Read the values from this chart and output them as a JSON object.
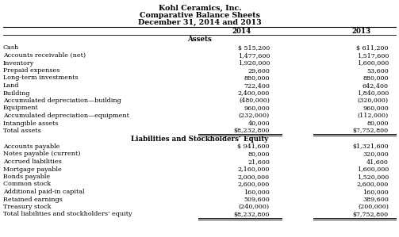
{
  "title_line1": "Kohl Ceramics, Inc.",
  "title_line2": "Comparative Balance Sheets",
  "title_line3": "December 31, 2014 and 2013",
  "assets_header": "Assets",
  "liabilities_header": "Liabilities and Stockholders’ Equity",
  "asset_rows": [
    [
      "Cash",
      "$ 515,200",
      "$ 611,200"
    ],
    [
      "Accounts receivable (net)",
      "1,477,600",
      "1,517,600"
    ],
    [
      "Inventory",
      "1,920,000",
      "1,600,000"
    ],
    [
      "Prepaid expenses",
      "29,600",
      "53,600"
    ],
    [
      "Long-term investments",
      "880,000",
      "880,000"
    ],
    [
      "Land",
      "722,400",
      "642,400"
    ],
    [
      "Building",
      "2,400,000",
      "1,840,000"
    ],
    [
      "Accumulated depreciation—building",
      "(480,000)",
      "(320,000)"
    ],
    [
      "Equipment",
      "960,000",
      "960,000"
    ],
    [
      "Accumulated depreciation—equipment",
      "(232,000)",
      "(112,000)"
    ],
    [
      "Intangible assets",
      "40,000",
      "80,000"
    ],
    [
      "Total assets",
      "$8,232,800",
      "$7,752,800"
    ]
  ],
  "liability_rows": [
    [
      "Accounts payable",
      "$ 941,600",
      "$1,321,600"
    ],
    [
      "Notes payable (current)",
      "80,000",
      "320,000"
    ],
    [
      "Accrued liabilities",
      "21,600",
      "41,600"
    ],
    [
      "Mortgage payable",
      "2,160,000",
      "1,600,000"
    ],
    [
      "Bonds payable",
      "2,000,000",
      "1,520,000"
    ],
    [
      "Common stock",
      "2,600,000",
      "2,600,000"
    ],
    [
      "Additional paid-in capital",
      "160,000",
      "160,000"
    ],
    [
      "Retained earnings",
      "509,600",
      "389,600"
    ],
    [
      "Treasury stock",
      "(240,000)",
      "(200,000)"
    ],
    [
      "Total liabilities and stockholders’ equity",
      "$8,232,800",
      "$7,752,800"
    ]
  ],
  "bg_color": "#ffffff",
  "text_color": "#000000",
  "font_size": 5.8,
  "title_font_size": 6.8,
  "header_font_size": 6.2
}
